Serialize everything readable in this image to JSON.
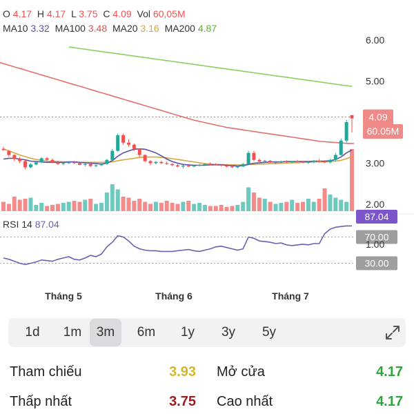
{
  "ohlc": {
    "o_label": "O",
    "o": "4.17",
    "h_label": "H",
    "h": "4.17",
    "l_label": "L",
    "l": "3.75",
    "c_label": "C",
    "c": "4.09",
    "vol_label": "Vol",
    "vol": "60,05M"
  },
  "ma": {
    "ma10_label": "MA10",
    "ma10": "3.32",
    "ma100_label": "MA100",
    "ma100": "3.48",
    "ma20_label": "MA20",
    "ma20": "3.16",
    "ma200_label": "MA200",
    "ma200": "4.87"
  },
  "colors": {
    "up": "#26a69a",
    "down": "#ef5350",
    "ma10": "#5b4fa8",
    "ma100": "#e07070",
    "ma20": "#d9a441",
    "ma200": "#8bcf63",
    "rsi": "#6a5fb0",
    "rsi_badge": "#7b55c9",
    "level_badge": "#9e9e9e",
    "ref": "#d4b62a",
    "high": "#2fa33f",
    "low": "#9b1c1c"
  },
  "chart_data": {
    "type": "candlestick",
    "price_axis_ticks": [
      "6.00",
      "5.00",
      "4.00",
      "3.00",
      "2.00"
    ],
    "price_axis_values": [
      6,
      5,
      4,
      3,
      2
    ],
    "last_price_label": "4.09",
    "last_volume_label": "60.05M",
    "x_axis_labels": [
      "Tháng 5",
      "Tháng 6",
      "Tháng 7"
    ],
    "candles": [
      [
        3.35,
        3.4,
        3.3,
        3.32
      ],
      [
        3.3,
        3.32,
        3.15,
        3.2
      ],
      [
        3.2,
        3.22,
        3.05,
        3.1
      ],
      [
        3.1,
        3.15,
        3.0,
        3.05
      ],
      [
        3.05,
        3.08,
        2.85,
        2.9
      ],
      [
        2.9,
        3.0,
        2.88,
        2.97
      ],
      [
        2.97,
        3.05,
        2.95,
        3.02
      ],
      [
        3.02,
        3.15,
        3.0,
        3.12
      ],
      [
        3.12,
        3.15,
        3.05,
        3.08
      ],
      [
        3.08,
        3.12,
        3.0,
        3.02
      ],
      [
        3.02,
        3.06,
        2.95,
        2.98
      ],
      [
        2.98,
        3.02,
        2.95,
        3.0
      ],
      [
        3.0,
        3.05,
        2.98,
        3.03
      ],
      [
        3.03,
        3.06,
        2.98,
        3.0
      ],
      [
        3.0,
        3.03,
        2.95,
        2.96
      ],
      [
        2.96,
        3.0,
        2.92,
        2.98
      ],
      [
        2.98,
        3.0,
        2.9,
        2.93
      ],
      [
        2.93,
        2.97,
        2.9,
        2.95
      ],
      [
        2.95,
        3.0,
        2.93,
        2.98
      ],
      [
        2.98,
        3.1,
        2.96,
        3.08
      ],
      [
        3.08,
        3.35,
        3.05,
        3.3
      ],
      [
        3.3,
        3.72,
        3.28,
        3.68
      ],
      [
        3.68,
        3.72,
        3.45,
        3.5
      ],
      [
        3.5,
        3.58,
        3.4,
        3.45
      ],
      [
        3.45,
        3.48,
        3.3,
        3.35
      ],
      [
        3.35,
        3.36,
        3.15,
        3.2
      ],
      [
        3.2,
        3.22,
        3.02,
        3.05
      ],
      [
        3.05,
        3.08,
        2.95,
        3.0
      ],
      [
        3.0,
        3.05,
        2.97,
        3.03
      ],
      [
        3.03,
        3.06,
        2.98,
        3.0
      ],
      [
        3.0,
        3.04,
        2.96,
        2.98
      ],
      [
        2.98,
        3.0,
        2.93,
        2.95
      ],
      [
        2.95,
        2.98,
        2.9,
        2.92
      ],
      [
        2.92,
        2.96,
        2.88,
        2.94
      ],
      [
        2.94,
        2.98,
        2.9,
        2.92
      ],
      [
        2.92,
        2.96,
        2.9,
        2.94
      ],
      [
        2.94,
        2.98,
        2.92,
        2.96
      ],
      [
        2.96,
        3.0,
        2.94,
        2.98
      ],
      [
        2.98,
        3.02,
        2.95,
        2.97
      ],
      [
        2.97,
        3.0,
        2.94,
        2.96
      ],
      [
        2.96,
        2.98,
        2.92,
        2.94
      ],
      [
        2.94,
        2.98,
        2.9,
        2.92
      ],
      [
        2.92,
        2.95,
        2.88,
        2.9
      ],
      [
        2.9,
        2.94,
        2.87,
        2.92
      ],
      [
        2.92,
        3.0,
        2.9,
        2.98
      ],
      [
        2.98,
        3.3,
        2.96,
        3.25
      ],
      [
        3.25,
        3.3,
        3.05,
        3.08
      ],
      [
        3.08,
        3.12,
        3.0,
        3.04
      ],
      [
        3.04,
        3.08,
        3.0,
        3.06
      ],
      [
        3.06,
        3.08,
        3.0,
        3.02
      ],
      [
        3.02,
        3.05,
        2.98,
        3.03
      ],
      [
        3.03,
        3.06,
        3.0,
        3.04
      ],
      [
        3.04,
        3.07,
        3.0,
        3.02
      ],
      [
        3.02,
        3.06,
        3.0,
        3.05
      ],
      [
        3.05,
        3.08,
        3.02,
        3.04
      ],
      [
        3.04,
        3.06,
        3.0,
        3.02
      ],
      [
        3.02,
        3.05,
        2.98,
        3.03
      ],
      [
        3.03,
        3.08,
        3.0,
        3.06
      ],
      [
        3.06,
        3.1,
        3.02,
        3.04
      ],
      [
        3.04,
        3.07,
        3.0,
        3.02
      ],
      [
        3.02,
        3.1,
        3.0,
        3.08
      ],
      [
        3.08,
        3.25,
        3.05,
        3.2
      ],
      [
        3.2,
        3.6,
        3.18,
        3.55
      ],
      [
        3.55,
        4.05,
        3.5,
        4.0
      ],
      [
        4.17,
        4.17,
        3.75,
        4.09
      ]
    ],
    "volume": [
      9,
      7,
      14,
      11,
      12,
      13,
      6,
      8,
      5,
      6,
      7,
      8,
      9,
      10,
      9,
      11,
      12,
      7,
      8,
      18,
      26,
      21,
      14,
      13,
      10,
      12,
      9,
      7,
      9,
      8,
      10,
      8,
      7,
      9,
      10,
      7,
      8,
      6,
      5,
      5,
      6,
      4,
      5,
      6,
      9,
      23,
      18,
      13,
      12,
      9,
      7,
      8,
      9,
      11,
      8,
      9,
      12,
      9,
      12,
      22,
      16,
      13,
      11,
      9,
      60
    ],
    "ma10": [
      3.1,
      3.12,
      3.12,
      3.1,
      3.08,
      3.05,
      3.04,
      3.03,
      3.02,
      3.02,
      3.02,
      3.02,
      3.03,
      3.03,
      3.02,
      3.01,
      3.0,
      2.99,
      2.98,
      3.0,
      3.06,
      3.17,
      3.25,
      3.3,
      3.34,
      3.35,
      3.34,
      3.3,
      3.25,
      3.18,
      3.1,
      3.04,
      3.0,
      2.97,
      2.96,
      2.95,
      2.95,
      2.95,
      2.96,
      2.96,
      2.96,
      2.95,
      2.94,
      2.93,
      2.94,
      2.97,
      3.0,
      3.01,
      3.02,
      3.03,
      3.03,
      3.03,
      3.04,
      3.04,
      3.04,
      3.04,
      3.04,
      3.05,
      3.05,
      3.05,
      3.06,
      3.09,
      3.15,
      3.25,
      3.32
    ],
    "ma20": [
      3.35,
      3.3,
      3.25,
      3.2,
      3.16,
      3.12,
      3.09,
      3.07,
      3.05,
      3.04,
      3.04,
      3.03,
      3.03,
      3.03,
      3.02,
      3.02,
      3.02,
      3.02,
      3.02,
      3.02,
      3.03,
      3.06,
      3.08,
      3.1,
      3.12,
      3.14,
      3.15,
      3.15,
      3.15,
      3.14,
      3.13,
      3.11,
      3.09,
      3.07,
      3.05,
      3.03,
      3.01,
      2.99,
      2.98,
      2.97,
      2.97,
      2.96,
      2.96,
      2.96,
      2.96,
      2.97,
      2.97,
      2.98,
      2.98,
      2.99,
      2.99,
      3.0,
      3.0,
      3.01,
      3.01,
      3.02,
      3.02,
      3.03,
      3.03,
      3.03,
      3.04,
      3.05,
      3.07,
      3.11,
      3.16
    ],
    "ma100": [
      5.45,
      5.41,
      5.37,
      5.33,
      5.29,
      5.25,
      5.21,
      5.17,
      5.13,
      5.09,
      5.05,
      5.01,
      4.97,
      4.93,
      4.89,
      4.85,
      4.81,
      4.77,
      4.73,
      4.69,
      4.65,
      4.61,
      4.57,
      4.53,
      4.49,
      4.45,
      4.41,
      4.37,
      4.33,
      4.29,
      4.25,
      4.21,
      4.17,
      4.13,
      4.09,
      4.05,
      4.02,
      3.99,
      3.96,
      3.93,
      3.9,
      3.87,
      3.85,
      3.83,
      3.81,
      3.79,
      3.77,
      3.75,
      3.73,
      3.71,
      3.69,
      3.67,
      3.65,
      3.63,
      3.61,
      3.59,
      3.57,
      3.55,
      3.53,
      3.52,
      3.51,
      3.5,
      3.49,
      3.48,
      3.48
    ],
    "ma200": [
      5.83,
      5.81,
      5.79,
      5.77,
      5.75,
      5.73,
      5.71,
      5.69,
      5.67,
      5.65,
      5.63,
      5.61,
      5.59,
      5.57,
      5.55,
      5.53,
      5.51,
      5.49,
      5.47,
      5.45,
      5.43,
      5.41,
      5.39,
      5.37,
      5.35,
      5.33,
      5.31,
      5.29,
      5.27,
      5.25,
      5.23,
      5.21,
      5.19,
      5.17,
      5.15,
      5.13,
      5.11,
      5.09,
      5.07,
      5.05,
      5.03,
      5.01,
      4.99,
      4.97,
      4.95,
      4.93,
      4.91,
      4.89,
      4.87
    ],
    "rsi_label": "RSI 14",
    "rsi_value": "87.04",
    "rsi_levels": [
      "70.00",
      "30.00"
    ],
    "rsi_level_values": [
      70,
      30
    ],
    "rsi_side_tick": "1.00",
    "rsi": [
      38,
      36,
      33,
      30,
      28,
      30,
      32,
      35,
      34,
      33,
      36,
      38,
      40,
      36,
      35,
      38,
      42,
      40,
      44,
      55,
      62,
      72,
      70,
      64,
      56,
      52,
      50,
      49,
      49,
      48,
      48,
      48,
      49,
      50,
      51,
      49,
      48,
      50,
      52,
      55,
      56,
      54,
      52,
      50,
      52,
      70,
      68,
      64,
      63,
      62,
      60,
      61,
      58,
      57,
      58,
      59,
      58,
      60,
      60,
      75,
      82,
      85,
      86,
      87,
      87
    ]
  },
  "periods": [
    "1d",
    "1m",
    "3m",
    "6m",
    "1y",
    "3y",
    "5y"
  ],
  "active_period": "3m",
  "stats": {
    "ref_label": "Tham chiếu",
    "ref_value": "3.93",
    "open_label": "Mở cửa",
    "open_value": "4.17",
    "low_label": "Thấp nhất",
    "low_value": "3.75",
    "high_label": "Cao nhất",
    "high_value": "4.17"
  }
}
